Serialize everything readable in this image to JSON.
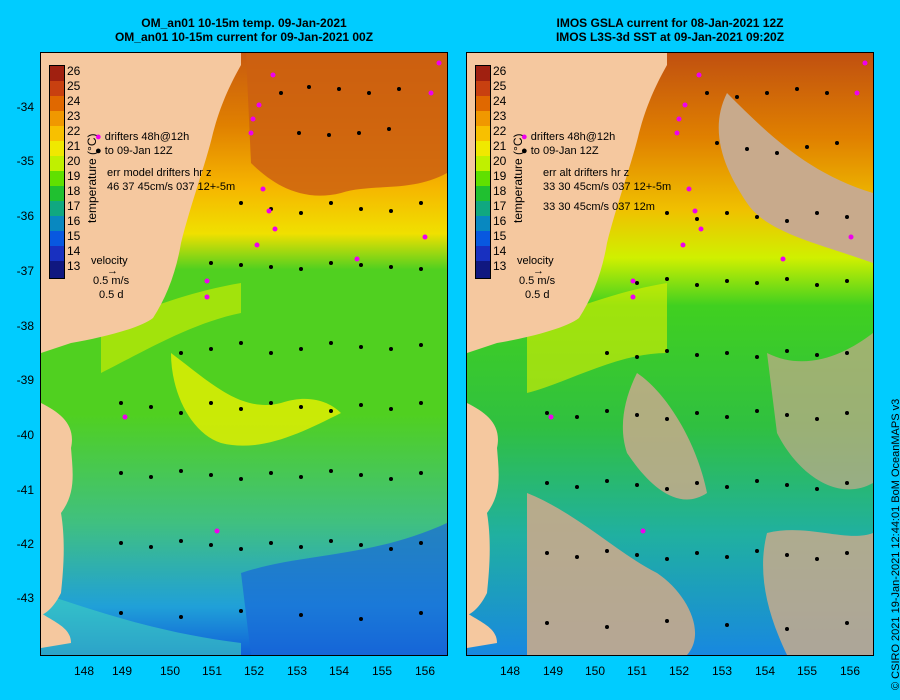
{
  "colors": {
    "background": "#00ccff",
    "land": "#f5c89f",
    "missing": "#c8aa8c",
    "drifter": "#ee00ee",
    "arrow": "#000000"
  },
  "left": {
    "title1": "OM_an01 10-15m temp. 09-Jan-2021",
    "title2": "OM_an01 10-15m current for 09-Jan-2021 00Z",
    "legend_drifter": "drifters 48h@12h",
    "legend_to": "to 09-Jan 12Z",
    "err_line1": "err model drifters hr z",
    "err_line2": "46 37 45cm/s 037 12+-5m",
    "velocity_label": "velocity",
    "velocity_scale": "0.5 m/s",
    "velocity_time": "0.5 d"
  },
  "right": {
    "title1": "IMOS GSLA current for 08-Jan-2021 12Z",
    "title2": "IMOS L3S-3d SST at 09-Jan-2021 09:20Z",
    "legend_drifter": "drifters 48h@12h",
    "legend_to": "to 09-Jan 12Z",
    "err_line1": "err alt drifters hr z",
    "err_line2": "33 30 45cm/s 037 12+-5m",
    "err_line3": "33 30 45cm/s 037 12m",
    "velocity_label": "velocity",
    "velocity_scale": "0.5 m/s",
    "velocity_time": "0.5 d"
  },
  "colorbar": {
    "title": "temperature (°C)",
    "labels": [
      "26",
      "25",
      "24",
      "23",
      "22",
      "21",
      "20",
      "19",
      "18",
      "17",
      "16",
      "15",
      "14",
      "13"
    ],
    "colors": [
      "#a02010",
      "#c84010",
      "#e06800",
      "#f09800",
      "#f8c000",
      "#f0e800",
      "#c0f000",
      "#60e000",
      "#20c030",
      "#10a880",
      "#0888c0",
      "#0858e0",
      "#1830c0",
      "#101880"
    ]
  },
  "axes": {
    "lat_labels": [
      "-34",
      "-35",
      "-36",
      "-37",
      "-38",
      "-39",
      "-40",
      "-41",
      "-42",
      "-43"
    ],
    "lon_labels": [
      "148",
      "149",
      "150",
      "151",
      "152",
      "153",
      "154",
      "155",
      "156"
    ]
  },
  "credit": "© CSIRO 2021  19-Jan-2021 12:44:01 BoM OceanMAPS v3"
}
